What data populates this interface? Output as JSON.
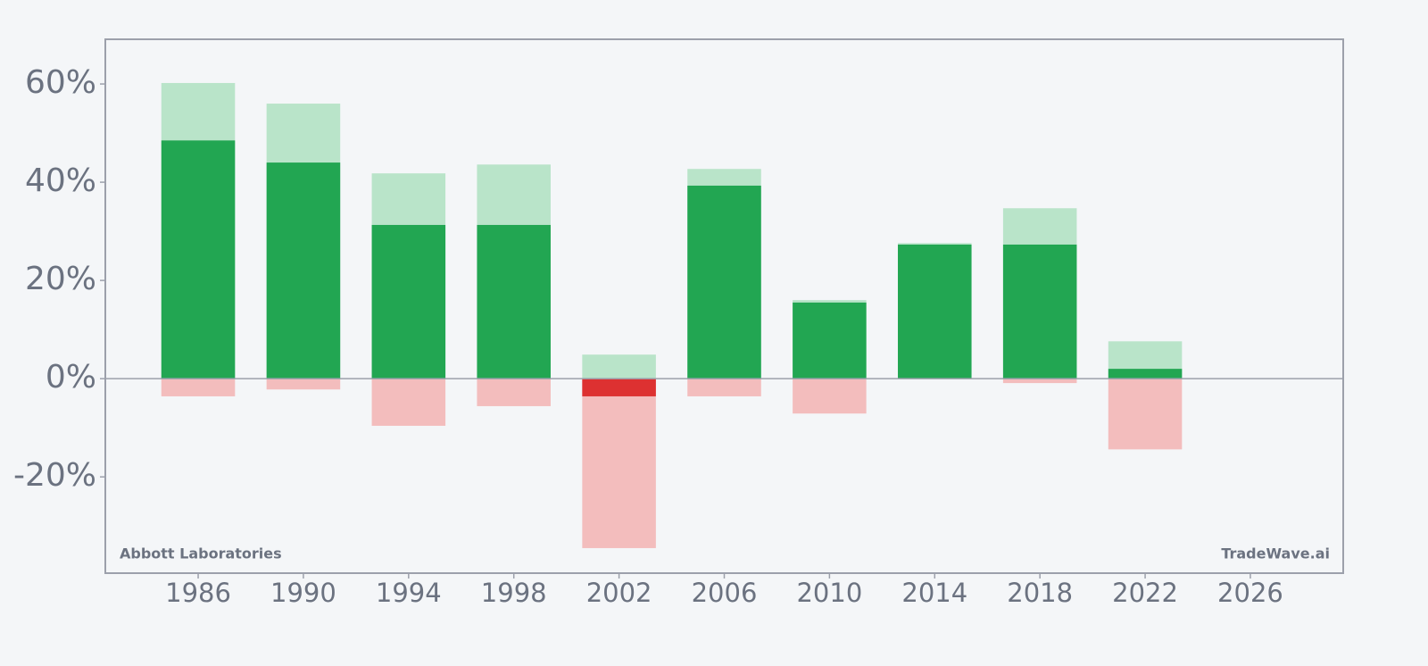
{
  "chart_data": {
    "type": "range-bar",
    "x": [
      1986,
      1990,
      1994,
      1998,
      2002,
      2006,
      2010,
      2014,
      2018,
      2022
    ],
    "values": [
      48.5,
      44.0,
      31.3,
      31.3,
      -3.6,
      39.3,
      15.5,
      27.3,
      27.3,
      2.0
    ],
    "highs": [
      60.2,
      56.0,
      41.8,
      43.6,
      4.9,
      42.7,
      16.0,
      27.6,
      34.7,
      7.6
    ],
    "lows": [
      -3.6,
      -2.2,
      -9.6,
      -5.6,
      -34.5,
      -3.6,
      -7.1,
      0,
      -0.9,
      -14.4
    ],
    "colors": {
      "positive": "#22a652",
      "negative": "#dd3131",
      "high": "#b9e4c9",
      "low": "#f3bdbd"
    },
    "xlim": [
      1982.47,
      2029.53
    ],
    "xticks": [
      1986,
      1990,
      1994,
      1998,
      2002,
      2006,
      2010,
      2014,
      2018,
      2022,
      2026
    ],
    "ylim": [
      -39.6,
      69.1
    ],
    "yticks": [
      {
        "value": -20,
        "label": "-20%"
      },
      {
        "value": 0,
        "label": "0%"
      },
      {
        "value": 20,
        "label": "20%"
      },
      {
        "value": 40,
        "label": "40%"
      },
      {
        "value": 60,
        "label": "60%"
      }
    ],
    "annotations": [
      "Abbott Laboratories",
      "TradeWave.ai"
    ]
  }
}
